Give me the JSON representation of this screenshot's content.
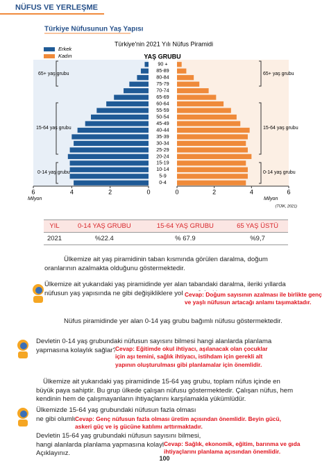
{
  "header": {
    "title": "NÜFUS VE YERLEŞME"
  },
  "section_title": "Türkiye Nüfusunun Yaş Yapısı",
  "chart_data": {
    "type": "pyramid",
    "title": "Türkiye'nin 2021 Yılı Nüfus Piramidi",
    "category_axis_label": "YAŞ GRUBU",
    "categories": [
      "0-4",
      "5-9",
      "10-14",
      "15-19",
      "20-24",
      "25-29",
      "30-34",
      "35-39",
      "40-44",
      "45-49",
      "50-54",
      "55-59",
      "60-64",
      "65-69",
      "70-74",
      "75-79",
      "80-84",
      "85-89",
      "90 +"
    ],
    "series": [
      {
        "name": "Erkek",
        "color": "#1f5a96",
        "side": "left",
        "values": [
          3.9,
          4.1,
          4.1,
          4.1,
          4.2,
          4.1,
          3.9,
          4.0,
          3.7,
          3.3,
          3.0,
          2.7,
          2.2,
          1.8,
          1.3,
          1.0,
          0.6,
          0.4,
          0.2
        ]
      },
      {
        "name": "Kadın",
        "color": "#ef8a3a",
        "side": "right",
        "values": [
          3.7,
          3.8,
          3.8,
          3.7,
          4.0,
          3.8,
          3.7,
          3.8,
          3.9,
          3.4,
          3.2,
          2.9,
          2.5,
          2.1,
          1.7,
          1.2,
          0.9,
          0.5,
          0.25
        ]
      }
    ],
    "xlim": [
      0,
      6
    ],
    "xticks": [
      0,
      2,
      4,
      6
    ],
    "x_label": "Milyon",
    "legend": "top-left",
    "annotations": [
      "65+ yaş grubu",
      "15-64 yaş grubu",
      "0-14 yaş grubu"
    ],
    "source": "(TÜİK, 2021)"
  },
  "table": {
    "header": [
      "YIL",
      "0-14 YAŞ GRUBU",
      "15-64 YAŞ GRUBU",
      "65 YAŞ ÜSTÜ"
    ],
    "rows": [
      [
        "2021",
        "%22.4",
        "% 67.9",
        "%9,7"
      ]
    ]
  },
  "paragraphs": [
    "Ülkemize ait yaş piramidinin taban kısmında görülen daralma, doğum oranlarının azalmakta olduğunu göstermektedir.",
    "Nüfus piramidinde yer alan 0-14 yaş grubu bağımlı nüfusu göstermektedir.",
    "Ülkemize ait yukarıdaki yaş piramidinde 15-64 yaş grubu, toplam nüfus içinde en büyük paya sahiptir. Bu grup ülkede çalışan nüfusu göstermektedir. Çalışan nüfus, hem kendinin hem de çalışmayanların ihtiyaçlarını karşılamakla yükümlüdür."
  ],
  "questions": [
    {
      "text": "Ülkemize ait yukarıdaki yaş piramidinde yer alan tabandaki daralma, ileriki yıllarda nüfusun yaş yapısında ne gibi değişikliklere yol açar? Açıklayınız.",
      "answer": "Cevap: Doğum sayısının azalması ile birlikte genç ve yaşlı nüfusun artacağı anlamı taşımaktadır."
    },
    {
      "text": "Devletin 0-14 yaş grubundaki nüfusun sayısını bilmesi hangi alanlarda planlama yapmasına kolaylık sağlar? Açıklayınız.",
      "answer": "Cevap: Eğitimde okul ihtiyacı, aşılanacak olan çocuklar için aşı temini, sağlık ihtiyacı, istihdam için gerekli alt yapının oluşturulması gibi planlamalar için önemlidir."
    },
    {
      "text": "Ülkemizde 15-64 yaş grubundaki nüfusun fazla olması ne gibi olumlu sonuçlar doğurur? Açıklayınız.",
      "answer": "Cevap: Genç nüfusun fazla olması üretim açısından önemlidir. Beyin gücü, askeri güç ve iş gücüne katılımı arttırmaktadır."
    },
    {
      "text": "Devletin 15-64 yaş grubundaki nüfusun sayısını bilmesi, hangi alanlarda planlama yapmasına kolaylık sağlar? Açıklayınız.",
      "answer": "Cevap: Sağlık, ekonomik, eğitim, barınma ve gıda ihtiyaçlarını planlama açısından önemlidir."
    }
  ],
  "page_number": "100"
}
